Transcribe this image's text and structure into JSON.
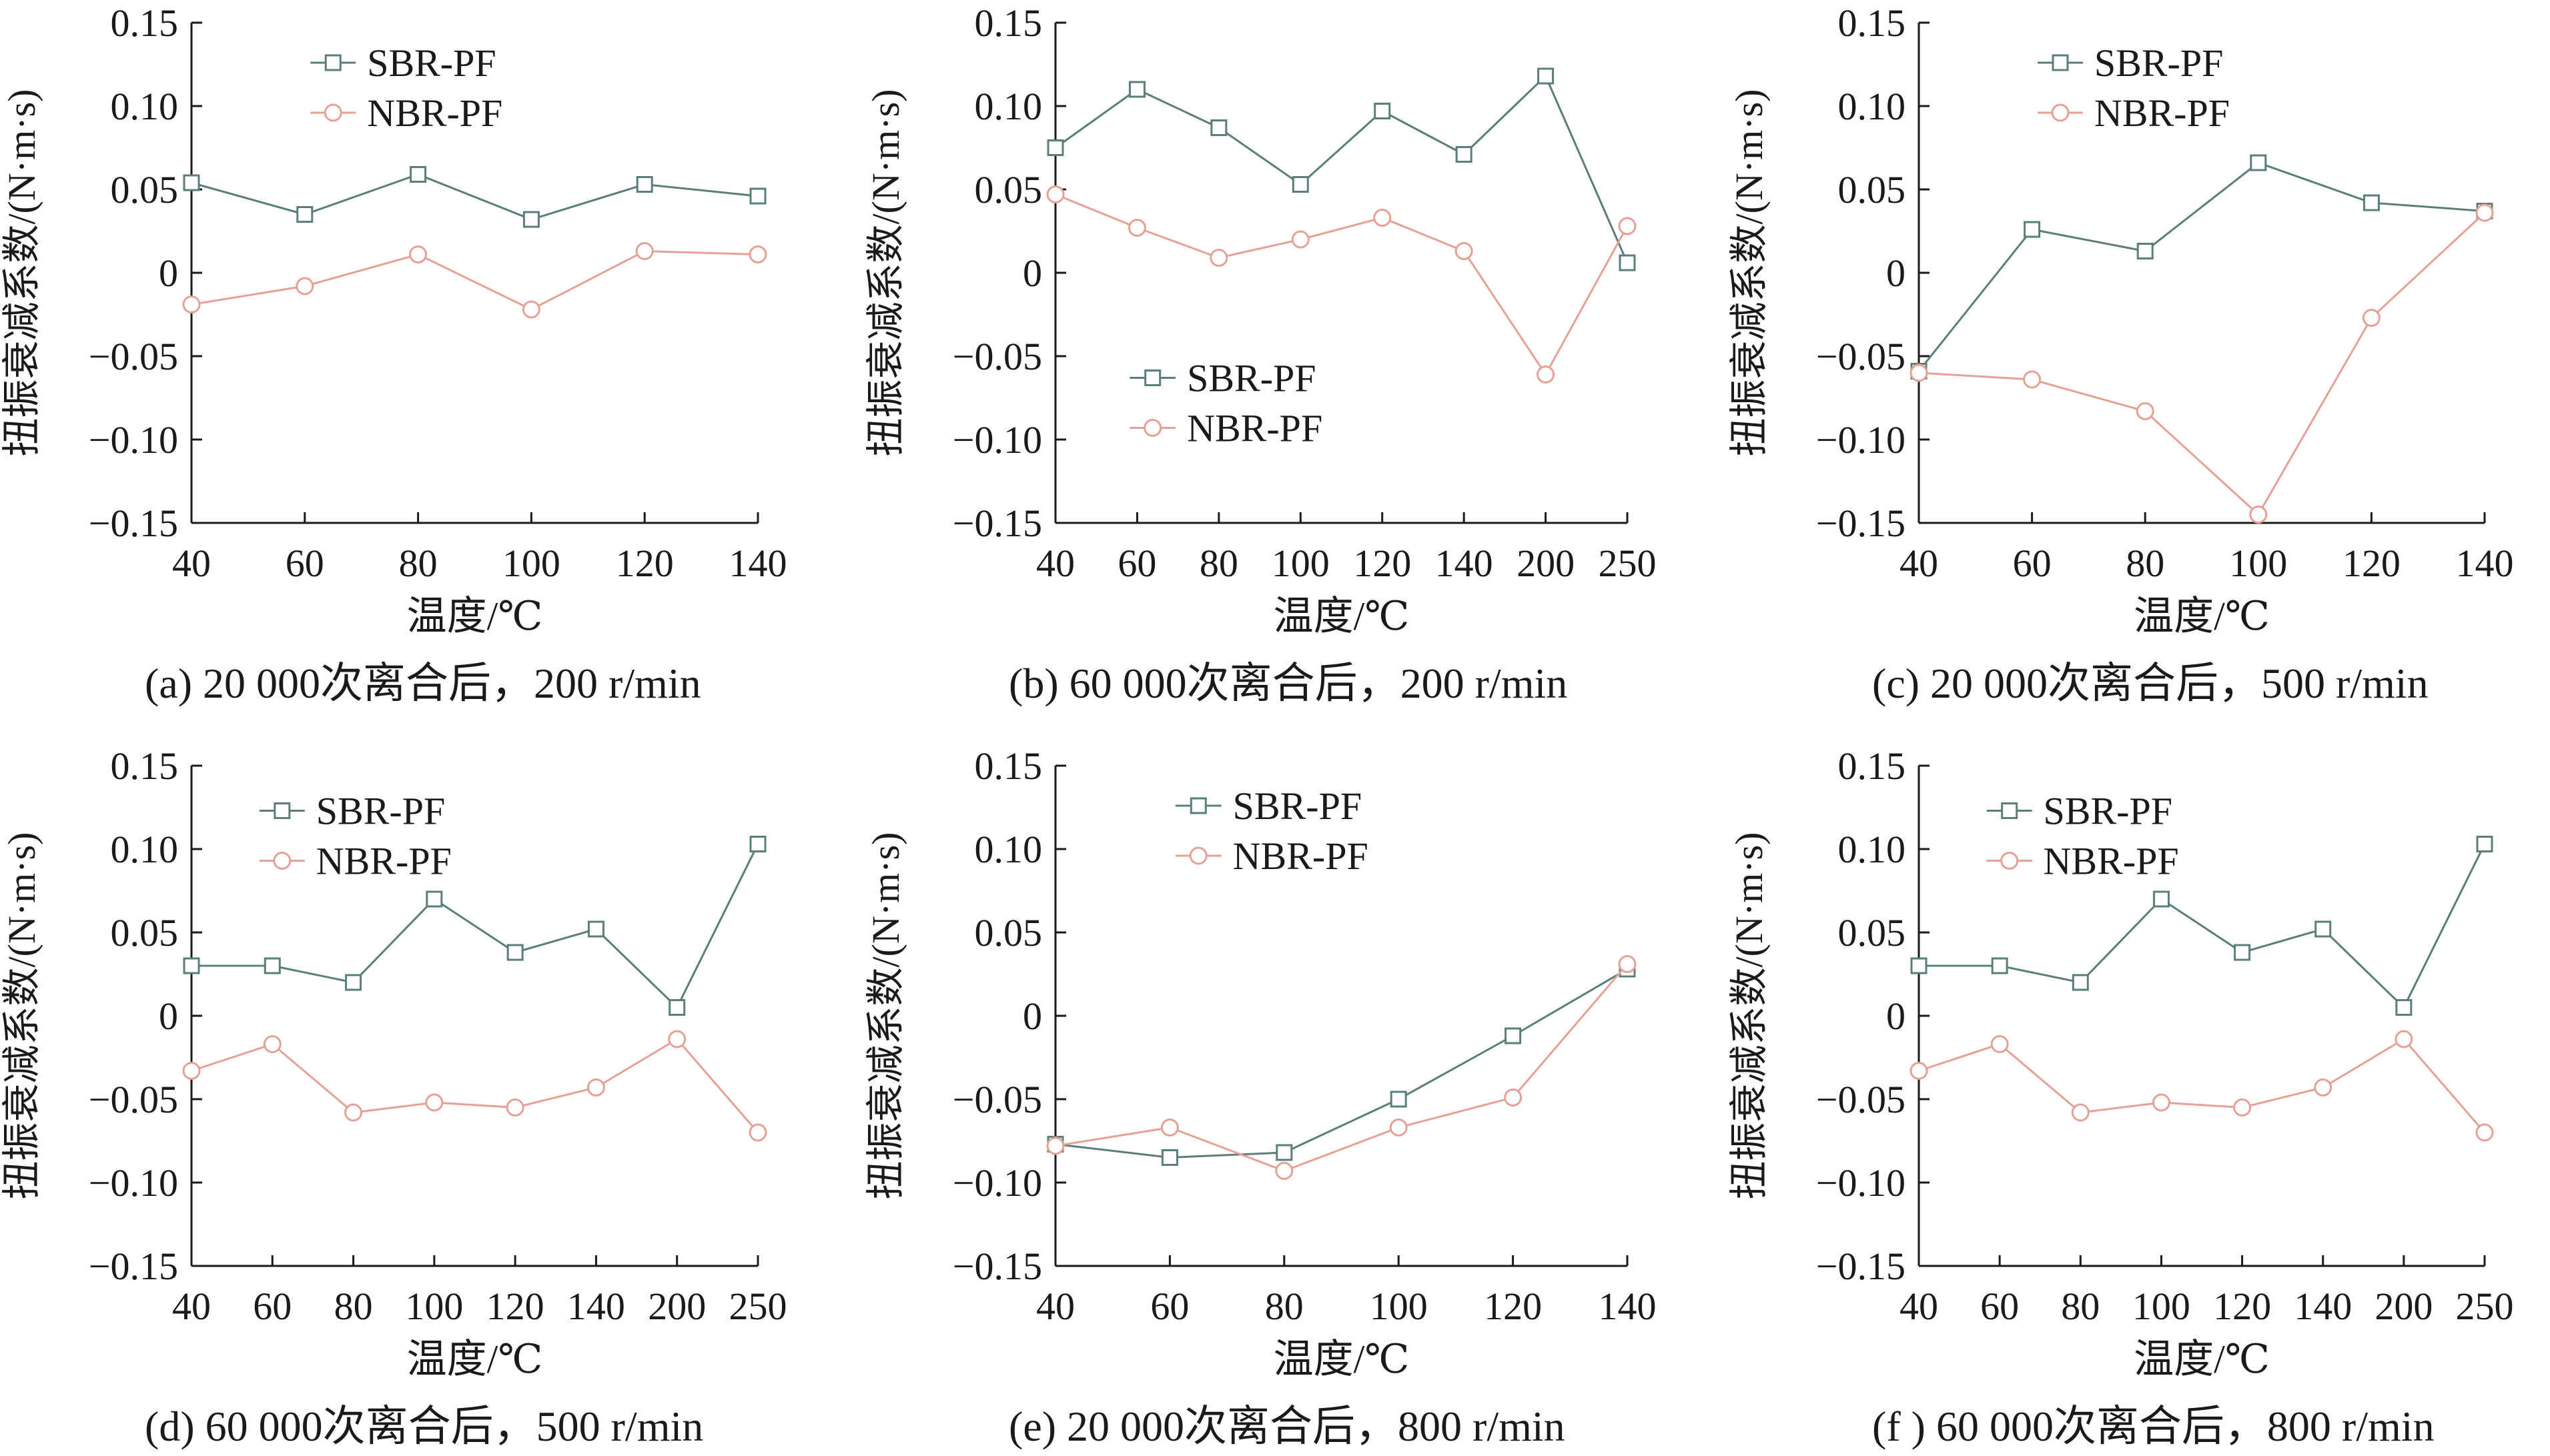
{
  "colors": {
    "sbr": "#5b7f78",
    "nbr": "#e6a196",
    "axis": "#1a1a1a",
    "text": "#1a1a1a"
  },
  "chart_data": [
    {
      "type": "line",
      "caption": "(a)  20 000次离合后，200 r/min",
      "xlabel": "温度/℃",
      "ylabel": "扭振衰减系数/(N·m·s)",
      "categories": [
        "40",
        "60",
        "80",
        "100",
        "120",
        "140"
      ],
      "ylim": [
        -0.15,
        0.15
      ],
      "yticks": [
        "−0.15",
        "−0.10",
        "−0.05",
        "0",
        "0.05",
        "0.10",
        "0.15"
      ],
      "legend_position": "top-right",
      "series": [
        {
          "name": "SBR-PF",
          "marker": "square",
          "values": [
            0.054,
            0.035,
            0.059,
            0.032,
            0.053,
            0.046
          ]
        },
        {
          "name": "NBR-PF",
          "marker": "circle",
          "values": [
            -0.019,
            -0.008,
            0.011,
            -0.022,
            0.013,
            0.011
          ]
        }
      ]
    },
    {
      "type": "line",
      "caption": "(b)  60 000次离合后，200 r/min",
      "xlabel": "温度/℃",
      "ylabel": "扭振衰减系数/(N·m·s)",
      "categories": [
        "40",
        "60",
        "80",
        "100",
        "120",
        "140",
        "200",
        "250"
      ],
      "ylim": [
        -0.15,
        0.15
      ],
      "yticks": [
        "−0.15",
        "−0.10",
        "−0.05",
        "0",
        "0.05",
        "0.10",
        "0.15"
      ],
      "legend_position": "bottom-left",
      "series": [
        {
          "name": "SBR-PF",
          "marker": "square",
          "values": [
            0.075,
            0.11,
            0.087,
            0.053,
            0.097,
            0.071,
            0.118,
            0.006
          ]
        },
        {
          "name": "NBR-PF",
          "marker": "circle",
          "values": [
            0.047,
            0.027,
            0.009,
            0.02,
            0.033,
            0.013,
            -0.061,
            0.028
          ]
        }
      ]
    },
    {
      "type": "line",
      "caption": "(c)  20 000次离合后，500 r/min",
      "xlabel": "温度/℃",
      "ylabel": "扭振衰减系数/(N·m·s)",
      "categories": [
        "40",
        "60",
        "80",
        "100",
        "120",
        "140"
      ],
      "ylim": [
        -0.15,
        0.15
      ],
      "yticks": [
        "−0.15",
        "−0.10",
        "−0.05",
        "0",
        "0.05",
        "0.10",
        "0.15"
      ],
      "legend_position": "top-right",
      "series": [
        {
          "name": "SBR-PF",
          "marker": "square",
          "values": [
            -0.059,
            0.026,
            0.013,
            0.066,
            0.042,
            0.037
          ]
        },
        {
          "name": "NBR-PF",
          "marker": "circle",
          "values": [
            -0.06,
            -0.064,
            -0.083,
            -0.145,
            -0.027,
            0.036
          ]
        }
      ]
    },
    {
      "type": "line",
      "caption": "(d)  60 000次离合后，500 r/min",
      "xlabel": "温度/℃",
      "ylabel": "扭振衰减系数/(N·m·s)",
      "categories": [
        "40",
        "60",
        "80",
        "100",
        "120",
        "140",
        "200",
        "250"
      ],
      "ylim": [
        -0.15,
        0.15
      ],
      "yticks": [
        "−0.15",
        "−0.10",
        "−0.05",
        "0",
        "0.05",
        "0.10",
        "0.15"
      ],
      "legend_position": "top-center",
      "series": [
        {
          "name": "SBR-PF",
          "marker": "square",
          "values": [
            0.03,
            0.03,
            0.02,
            0.07,
            0.038,
            0.052,
            0.005,
            0.103
          ]
        },
        {
          "name": "NBR-PF",
          "marker": "circle",
          "values": [
            -0.033,
            -0.017,
            -0.058,
            -0.052,
            -0.055,
            -0.043,
            -0.014,
            -0.07
          ]
        }
      ]
    },
    {
      "type": "line",
      "caption": "(e)  20 000次离合后，800 r/min",
      "xlabel": "温度/℃",
      "ylabel": "扭振衰减系数/(N·m·s)",
      "categories": [
        "40",
        "60",
        "80",
        "100",
        "120",
        "140"
      ],
      "ylim": [
        -0.15,
        0.15
      ],
      "yticks": [
        "−0.15",
        "−0.10",
        "−0.05",
        "0",
        "0.05",
        "0.10",
        "0.15"
      ],
      "legend_position": "top-right",
      "series": [
        {
          "name": "SBR-PF",
          "marker": "square",
          "values": [
            -0.077,
            -0.085,
            -0.082,
            -0.05,
            -0.012,
            0.028
          ]
        },
        {
          "name": "NBR-PF",
          "marker": "circle",
          "values": [
            -0.078,
            -0.067,
            -0.093,
            -0.067,
            -0.049,
            0.031
          ]
        }
      ]
    },
    {
      "type": "line",
      "caption": "(f )  60 000次离合后，800 r/min",
      "xlabel": "温度/℃",
      "ylabel": "扭振衰减系数/(N·m·s)",
      "categories": [
        "40",
        "60",
        "80",
        "100",
        "120",
        "140",
        "200",
        "250"
      ],
      "ylim": [
        -0.15,
        0.15
      ],
      "yticks": [
        "−0.15",
        "−0.10",
        "−0.05",
        "0",
        "0.05",
        "0.10",
        "0.15"
      ],
      "legend_position": "top-center",
      "series": [
        {
          "name": "SBR-PF",
          "marker": "square",
          "values": [
            0.03,
            0.03,
            0.02,
            0.07,
            0.038,
            0.052,
            0.005,
            0.103
          ]
        },
        {
          "name": "NBR-PF",
          "marker": "circle",
          "values": [
            -0.033,
            -0.017,
            -0.058,
            -0.052,
            -0.055,
            -0.043,
            -0.014,
            -0.07
          ]
        }
      ]
    }
  ]
}
